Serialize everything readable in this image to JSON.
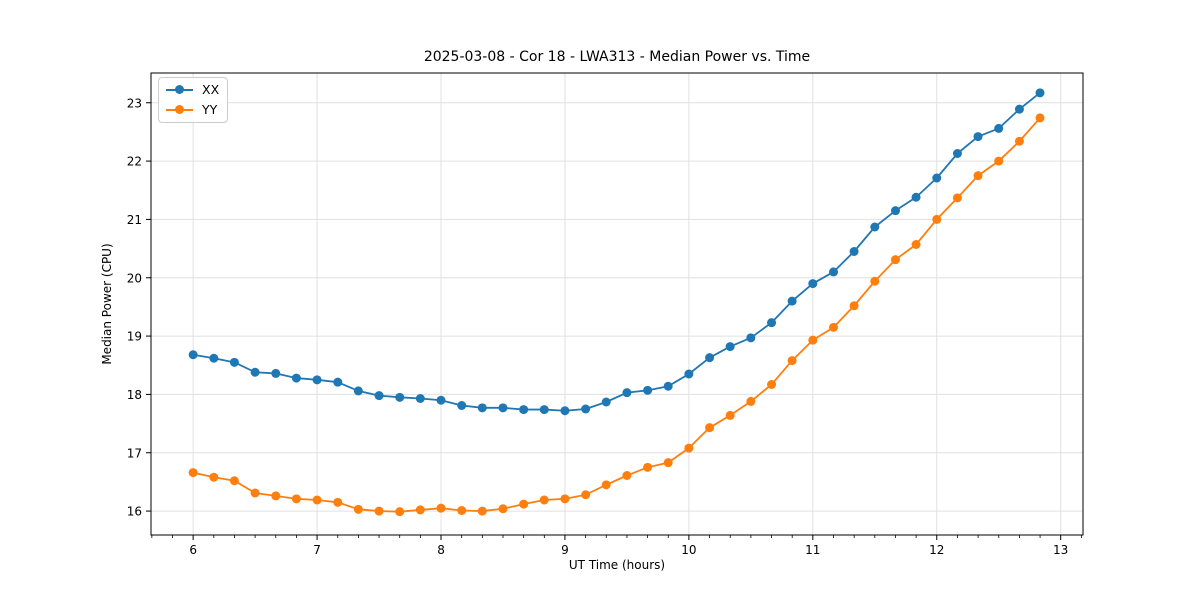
{
  "chart_data": {
    "type": "line",
    "title": "2025-03-08 - Cor 18 - LWA313 - Median Power vs. Time",
    "xlabel": "UT Time (hours)",
    "ylabel": "Median Power (CPU)",
    "x": [
      6.0,
      6.167,
      6.333,
      6.5,
      6.667,
      6.833,
      7.0,
      7.167,
      7.333,
      7.5,
      7.667,
      7.833,
      8.0,
      8.167,
      8.333,
      8.5,
      8.667,
      8.833,
      9.0,
      9.167,
      9.333,
      9.5,
      9.667,
      9.833,
      10.0,
      10.167,
      10.333,
      10.5,
      10.667,
      10.833,
      11.0,
      11.167,
      11.333,
      11.5,
      11.667,
      11.833,
      12.0,
      12.167,
      12.333,
      12.5,
      12.667,
      12.833
    ],
    "series": [
      {
        "name": "XX",
        "color": "#1f77b4",
        "marker": "circle",
        "values": [
          18.68,
          18.62,
          18.55,
          18.38,
          18.36,
          18.28,
          18.25,
          18.21,
          18.06,
          17.98,
          17.95,
          17.93,
          17.9,
          17.81,
          17.77,
          17.77,
          17.74,
          17.74,
          17.72,
          17.75,
          17.87,
          18.03,
          18.07,
          18.14,
          18.35,
          18.63,
          18.82,
          18.97,
          19.23,
          19.6,
          19.9,
          20.1,
          20.45,
          20.87,
          21.15,
          21.38,
          21.71,
          22.13,
          22.42,
          22.56,
          22.89,
          23.17
        ]
      },
      {
        "name": "YY",
        "color": "#ff7f0e",
        "marker": "circle",
        "values": [
          16.66,
          16.58,
          16.52,
          16.31,
          16.26,
          16.21,
          16.19,
          16.15,
          16.03,
          16.0,
          15.99,
          16.02,
          16.05,
          16.01,
          16.0,
          16.04,
          16.12,
          16.19,
          16.21,
          16.28,
          16.45,
          16.61,
          16.75,
          16.83,
          17.08,
          17.43,
          17.64,
          17.88,
          18.17,
          18.58,
          18.93,
          19.15,
          19.52,
          19.94,
          20.31,
          20.57,
          21.0,
          21.37,
          21.75,
          22.0,
          22.34,
          22.74
        ]
      }
    ],
    "xticks": [
      6,
      7,
      8,
      9,
      10,
      11,
      12,
      13
    ],
    "yticks": [
      16,
      17,
      18,
      19,
      20,
      21,
      22,
      23
    ],
    "xlim": [
      5.66,
      13.18
    ],
    "ylim": [
      15.59,
      23.51
    ],
    "x_minor_tick_step": 0.16667,
    "grid": true,
    "grid_color": "#e0e0e0",
    "spine_color": "#000000",
    "background": "#ffffff",
    "legend_position": "upper left"
  }
}
